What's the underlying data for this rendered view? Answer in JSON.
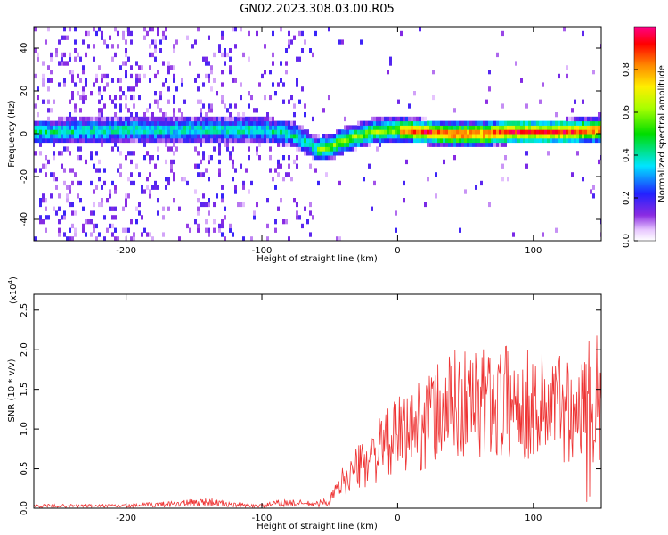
{
  "title": "GN02.2023.308.03.00.R05",
  "chart_data": [
    {
      "type": "heatmap",
      "xlabel": "Height of straight line (km)",
      "ylabel": "Frequency (Hz)",
      "xlim": [
        -268,
        150
      ],
      "ylim": [
        -50,
        50
      ],
      "xticks": [
        -200,
        -100,
        0,
        100
      ],
      "yticks": [
        -40,
        -20,
        0,
        20,
        40
      ],
      "grid": false,
      "ridge_center": [
        [
          -250,
          0
        ],
        [
          -200,
          1
        ],
        [
          -170,
          1
        ],
        [
          -140,
          1
        ],
        [
          -120,
          1
        ],
        [
          -100,
          1
        ],
        [
          -80,
          -1
        ],
        [
          -70,
          -4
        ],
        [
          -60,
          -8
        ],
        [
          -50,
          -7
        ],
        [
          -40,
          -4
        ],
        [
          -30,
          -2
        ],
        [
          -20,
          0
        ],
        [
          0,
          1
        ],
        [
          20,
          0
        ],
        [
          40,
          -1
        ],
        [
          60,
          -1
        ],
        [
          80,
          0
        ],
        [
          100,
          0
        ],
        [
          120,
          0
        ],
        [
          150,
          1
        ]
      ],
      "colorbar": {
        "label": "Normalized spectral amplitude",
        "range": [
          0.0,
          1.0
        ],
        "ticks": [
          "0.0",
          "0.2",
          "0.4",
          "0.6",
          "0.8"
        ]
      }
    },
    {
      "type": "line",
      "xlabel": "Height of straight line (km)",
      "ylabel": "SNR (10 * v/v)",
      "scale_label": "(x10",
      "scale_exp": "4",
      "scale_close": ")",
      "xlim": [
        -268,
        150
      ],
      "ylim": [
        0,
        2.7
      ],
      "xticks": [
        -200,
        -100,
        0,
        100
      ],
      "yticks": [
        "0.0",
        "0.5",
        "1.0",
        "1.5",
        "2.0",
        "2.5"
      ],
      "series": [
        {
          "color": "#ee3333",
          "envelope": [
            [
              -268,
              0.03
            ],
            [
              -200,
              0.03
            ],
            [
              -160,
              0.06
            ],
            [
              -140,
              0.08
            ],
            [
              -120,
              0.04
            ],
            [
              -100,
              0.03
            ],
            [
              -85,
              0.07
            ],
            [
              -70,
              0.06
            ],
            [
              -60,
              0.05
            ],
            [
              -50,
              0.1
            ],
            [
              -40,
              0.35
            ],
            [
              -20,
              0.65
            ],
            [
              0,
              0.9
            ],
            [
              20,
              1.1
            ],
            [
              40,
              1.3
            ],
            [
              60,
              1.35
            ],
            [
              80,
              1.35
            ],
            [
              100,
              1.3
            ],
            [
              120,
              1.3
            ],
            [
              140,
              1.25
            ],
            [
              150,
              1.2
            ]
          ]
        }
      ]
    }
  ]
}
